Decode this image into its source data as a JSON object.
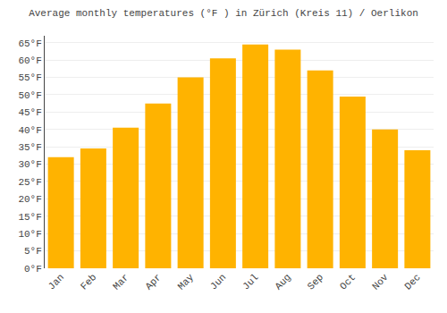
{
  "chart_data": {
    "type": "bar",
    "title": "Average monthly temperatures (°F ) in Zürich (Kreis 11) / Oerlikon",
    "categories": [
      "Jan",
      "Feb",
      "Mar",
      "Apr",
      "May",
      "Jun",
      "Jul",
      "Aug",
      "Sep",
      "Oct",
      "Nov",
      "Dec"
    ],
    "values": [
      32,
      34.5,
      40.5,
      47.5,
      55,
      60.5,
      64.5,
      63,
      57,
      49.5,
      40,
      34
    ],
    "color": "#FFB300",
    "ylim": [
      0,
      67
    ],
    "yticks": [
      {
        "value": 0,
        "label": "0°F"
      },
      {
        "value": 5,
        "label": "5°F"
      },
      {
        "value": 10,
        "label": "10°F"
      },
      {
        "value": 15,
        "label": "15°F"
      },
      {
        "value": 20,
        "label": "20°F"
      },
      {
        "value": 25,
        "label": "25°F"
      },
      {
        "value": 30,
        "label": "30°F"
      },
      {
        "value": 35,
        "label": "35°F"
      },
      {
        "value": 40,
        "label": "40°F"
      },
      {
        "value": 45,
        "label": "45°F"
      },
      {
        "value": 50,
        "label": "50°F"
      },
      {
        "value": 55,
        "label": "55°F"
      },
      {
        "value": 60,
        "label": "60°F"
      },
      {
        "value": 65,
        "label": "65°F"
      }
    ],
    "grid": true
  }
}
